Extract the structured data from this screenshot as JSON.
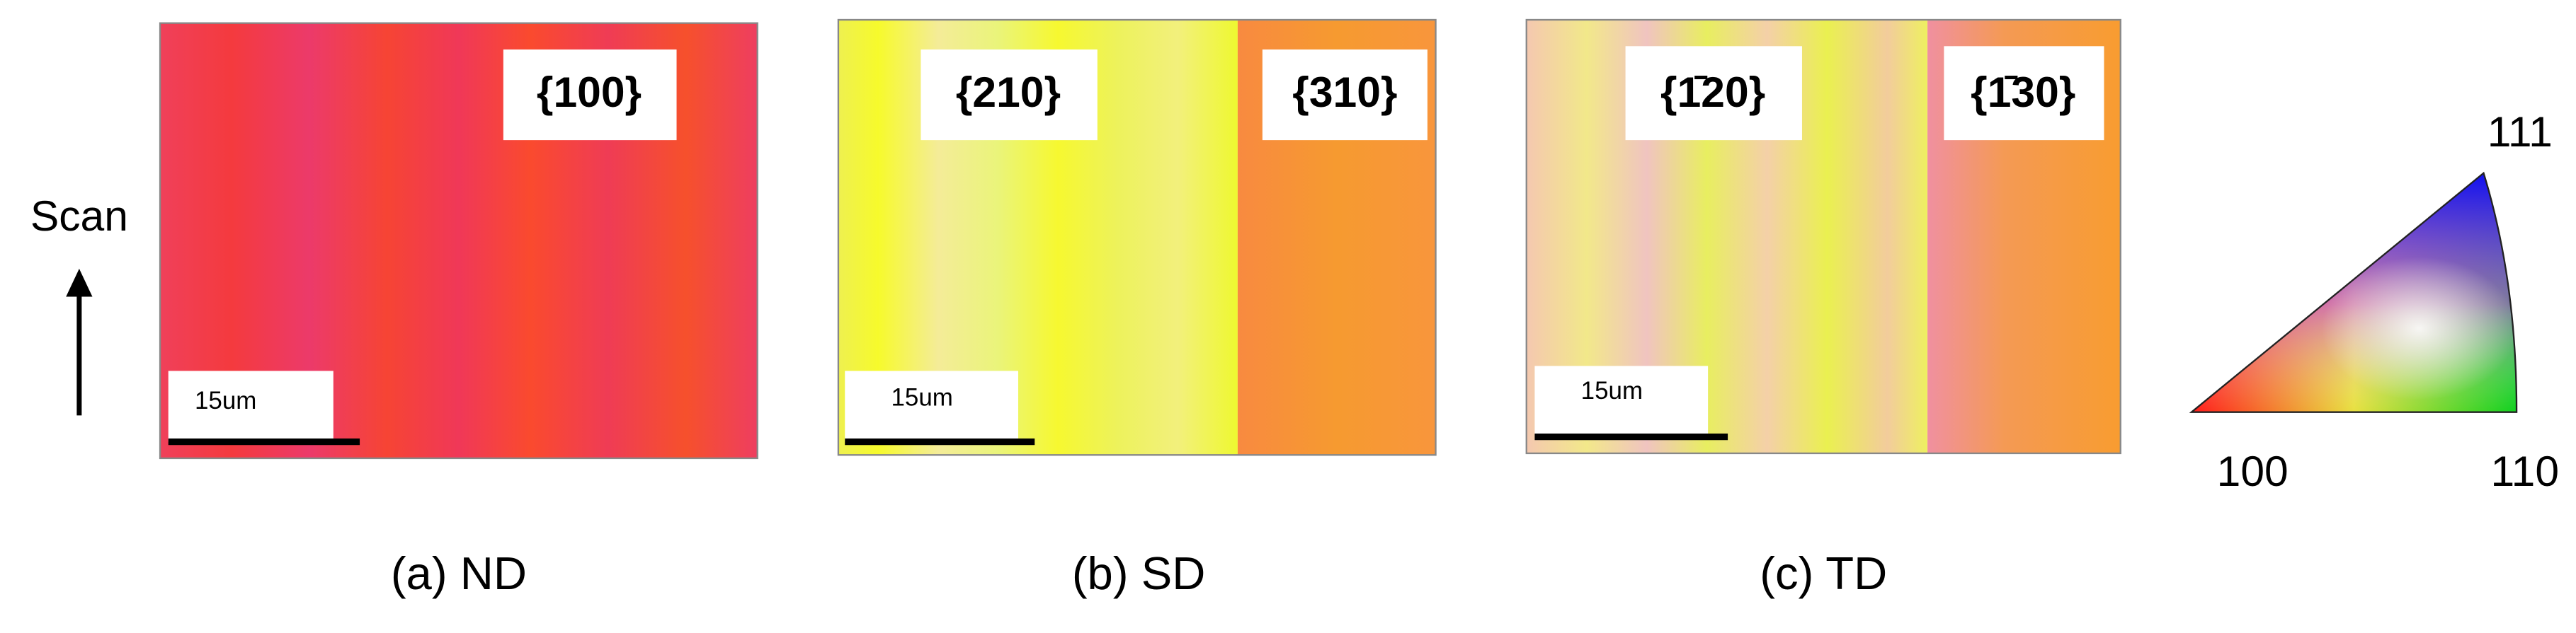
{
  "scan_label": "Scan",
  "panels": [
    {
      "caption": "(a)  ND",
      "labels": [
        "{100}"
      ],
      "scale_bar": "15um"
    },
    {
      "caption": "(b)  SD",
      "labels": [
        "{210}",
        "{310}"
      ],
      "scale_bar": "15um"
    },
    {
      "caption": "(c)  TD",
      "labels": [
        "{1̄20}",
        "{1̄30}"
      ],
      "scale_bar": "15um"
    }
  ],
  "ipf": {
    "labels": [
      "111",
      "100",
      "110"
    ]
  }
}
